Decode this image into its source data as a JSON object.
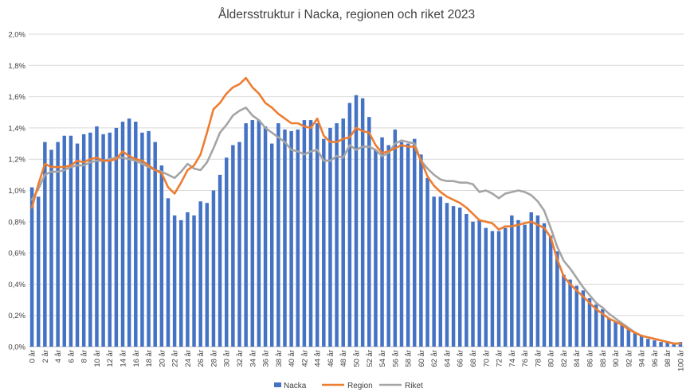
{
  "chart_data": {
    "type": "bar",
    "title": "Åldersstruktur i Nacka, regionen och riket 2023",
    "xlabel": "",
    "ylabel": "",
    "ylim": [
      0,
      2.0
    ],
    "y_ticks": [
      "0,0%",
      "0,2%",
      "0,4%",
      "0,6%",
      "0,8%",
      "1,0%",
      "1,2%",
      "1,4%",
      "1,6%",
      "1,8%",
      "2,0%"
    ],
    "grid": true,
    "legend": "bottom",
    "categories": [
      "0 år",
      "1 år",
      "2 år",
      "3 år",
      "4 år",
      "5 år",
      "6 år",
      "7 år",
      "8 år",
      "9 år",
      "10 år",
      "11 år",
      "12 år",
      "13 år",
      "14 år",
      "15 år",
      "16 år",
      "17 år",
      "18 år",
      "19 år",
      "20 år",
      "21 år",
      "22 år",
      "23 år",
      "24 år",
      "25 år",
      "26 år",
      "27 år",
      "28 år",
      "29 år",
      "30 år",
      "31 år",
      "32 år",
      "33 år",
      "34 år",
      "35 år",
      "36 år",
      "37 år",
      "38 år",
      "39 år",
      "40 år",
      "41 år",
      "42 år",
      "43 år",
      "44 år",
      "45 år",
      "46 år",
      "47 år",
      "48 år",
      "49 år",
      "50 år",
      "51 år",
      "52 år",
      "53 år",
      "54 år",
      "55 år",
      "56 år",
      "57 år",
      "58 år",
      "59 år",
      "60 år",
      "61 år",
      "62 år",
      "63 år",
      "64 år",
      "65 år",
      "66 år",
      "67 år",
      "68 år",
      "69 år",
      "70 år",
      "71 år",
      "72 år",
      "73 år",
      "74 år",
      "75 år",
      "76 år",
      "77 år",
      "78 år",
      "79 år",
      "80 år",
      "81 år",
      "82 år",
      "83 år",
      "84 år",
      "85 år",
      "86 år",
      "87 år",
      "88 år",
      "89 år",
      "90 år",
      "91 år",
      "92 år",
      "93 år",
      "94 år",
      "95 år",
      "96 år",
      "97 år",
      "98 år",
      "99 år",
      "100 år"
    ],
    "x_tick_labels": [
      "0 år",
      "2 år",
      "4 år",
      "6 år",
      "8 år",
      "10 år",
      "12 år",
      "14 år",
      "16 år",
      "18 år",
      "20 år",
      "22 år",
      "24 år",
      "26 år",
      "28 år",
      "30 år",
      "32 år",
      "34 år",
      "36 år",
      "38 år",
      "40 år",
      "42 år",
      "44 år",
      "46 år",
      "48 år",
      "50 år",
      "52 år",
      "54 år",
      "56 år",
      "58 år",
      "60 år",
      "62 år",
      "64 år",
      "66 år",
      "68 år",
      "70 år",
      "72 år",
      "74 år",
      "76 år",
      "78 år",
      "80 år",
      "82 år",
      "84 år",
      "86 år",
      "88 år",
      "90 år",
      "92 år",
      "94 år",
      "96 år",
      "98 år",
      "100 år"
    ],
    "series": [
      {
        "name": "Nacka",
        "type": "bar",
        "color": "#4472C4",
        "values": [
          1.02,
          0.96,
          1.31,
          1.26,
          1.31,
          1.35,
          1.35,
          1.3,
          1.36,
          1.37,
          1.41,
          1.36,
          1.37,
          1.4,
          1.44,
          1.46,
          1.44,
          1.37,
          1.38,
          1.31,
          1.16,
          0.95,
          0.84,
          0.81,
          0.86,
          0.84,
          0.93,
          0.92,
          1.0,
          1.1,
          1.21,
          1.29,
          1.31,
          1.43,
          1.45,
          1.45,
          1.41,
          1.3,
          1.43,
          1.39,
          1.38,
          1.39,
          1.45,
          1.45,
          1.43,
          1.33,
          1.4,
          1.43,
          1.46,
          1.56,
          1.61,
          1.59,
          1.47,
          1.26,
          1.34,
          1.29,
          1.39,
          1.31,
          1.3,
          1.33,
          1.23,
          1.08,
          0.96,
          0.96,
          0.92,
          0.9,
          0.89,
          0.85,
          0.8,
          0.81,
          0.76,
          0.74,
          0.74,
          0.76,
          0.84,
          0.81,
          0.78,
          0.86,
          0.84,
          0.79,
          0.71,
          0.61,
          0.46,
          0.43,
          0.39,
          0.36,
          0.31,
          0.27,
          0.24,
          0.18,
          0.16,
          0.14,
          0.11,
          0.09,
          0.07,
          0.05,
          0.04,
          0.03,
          0.03,
          0.02,
          0.03
        ]
      },
      {
        "name": "Region",
        "type": "line",
        "color": "#ED7D31",
        "values": [
          0.89,
          1.04,
          1.17,
          1.15,
          1.15,
          1.15,
          1.16,
          1.19,
          1.18,
          1.2,
          1.21,
          1.19,
          1.19,
          1.2,
          1.25,
          1.22,
          1.2,
          1.19,
          1.16,
          1.13,
          1.11,
          1.02,
          0.98,
          1.05,
          1.13,
          1.16,
          1.23,
          1.37,
          1.52,
          1.56,
          1.62,
          1.66,
          1.68,
          1.72,
          1.66,
          1.62,
          1.56,
          1.53,
          1.49,
          1.46,
          1.43,
          1.43,
          1.41,
          1.4,
          1.46,
          1.35,
          1.31,
          1.31,
          1.33,
          1.34,
          1.4,
          1.38,
          1.37,
          1.29,
          1.24,
          1.25,
          1.27,
          1.29,
          1.28,
          1.28,
          1.19,
          1.09,
          1.03,
          0.99,
          0.96,
          0.94,
          0.92,
          0.89,
          0.85,
          0.81,
          0.8,
          0.79,
          0.75,
          0.77,
          0.77,
          0.78,
          0.79,
          0.8,
          0.78,
          0.76,
          0.7,
          0.56,
          0.45,
          0.4,
          0.36,
          0.32,
          0.28,
          0.24,
          0.21,
          0.18,
          0.16,
          0.14,
          0.11,
          0.09,
          0.07,
          0.06,
          0.05,
          0.04,
          0.03,
          0.02,
          0.02
        ]
      },
      {
        "name": "Riket",
        "type": "line",
        "color": "#A5A5A5",
        "values": [
          0.94,
          1.01,
          1.1,
          1.12,
          1.12,
          1.13,
          1.15,
          1.16,
          1.16,
          1.18,
          1.19,
          1.19,
          1.2,
          1.21,
          1.21,
          1.2,
          1.19,
          1.17,
          1.15,
          1.13,
          1.12,
          1.1,
          1.08,
          1.12,
          1.17,
          1.14,
          1.13,
          1.18,
          1.27,
          1.37,
          1.42,
          1.48,
          1.51,
          1.53,
          1.48,
          1.45,
          1.4,
          1.37,
          1.34,
          1.31,
          1.26,
          1.25,
          1.23,
          1.25,
          1.26,
          1.19,
          1.19,
          1.22,
          1.21,
          1.29,
          1.26,
          1.28,
          1.28,
          1.26,
          1.22,
          1.24,
          1.3,
          1.32,
          1.31,
          1.3,
          1.19,
          1.14,
          1.1,
          1.07,
          1.06,
          1.06,
          1.05,
          1.05,
          1.04,
          0.99,
          1.0,
          0.98,
          0.95,
          0.98,
          0.99,
          1.0,
          0.99,
          0.97,
          0.93,
          0.87,
          0.76,
          0.64,
          0.55,
          0.5,
          0.44,
          0.38,
          0.33,
          0.28,
          0.25,
          0.21,
          0.18,
          0.15,
          0.12,
          0.09,
          0.07,
          0.06,
          0.05,
          0.04,
          0.03,
          0.02,
          0.02
        ]
      }
    ]
  }
}
